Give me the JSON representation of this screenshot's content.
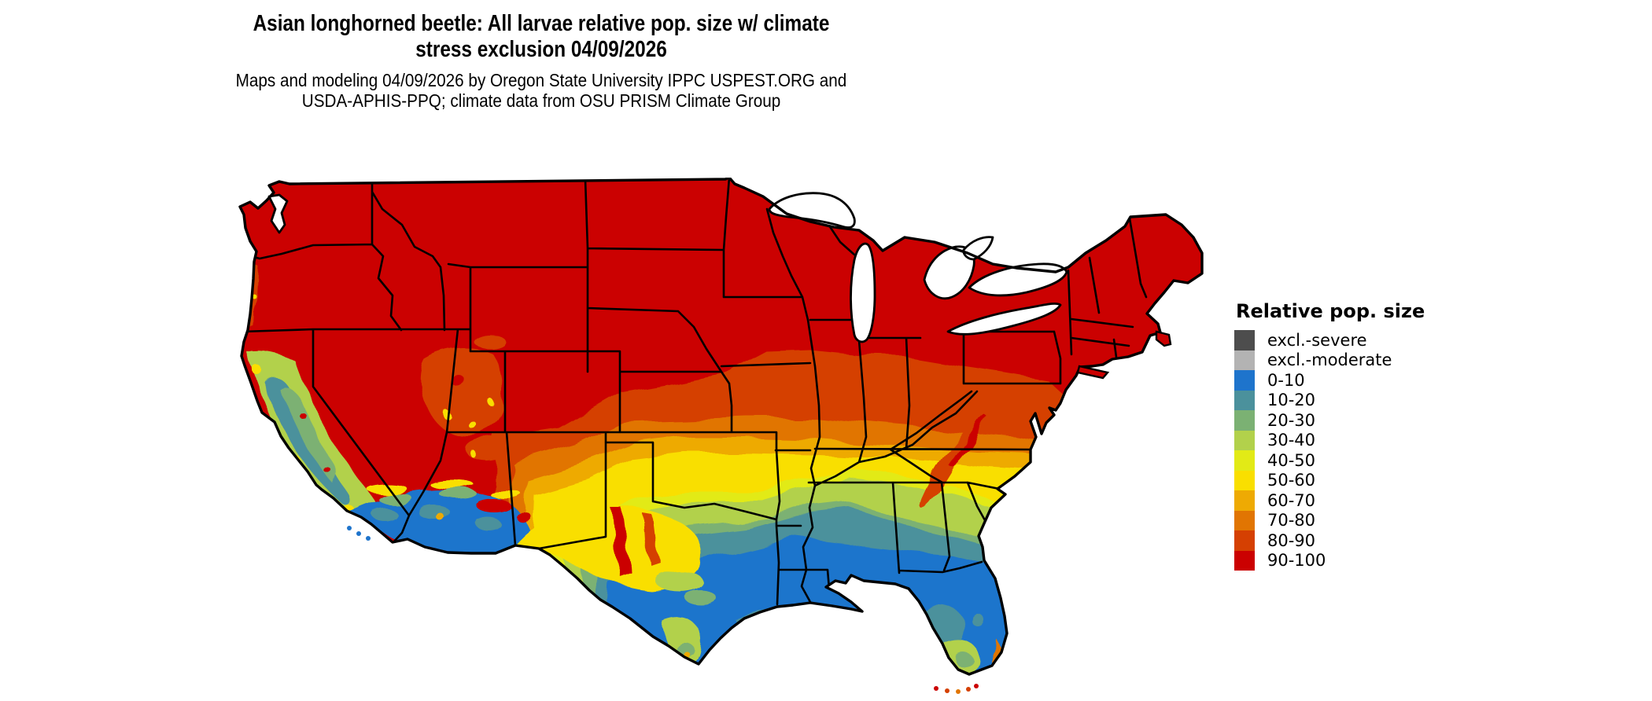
{
  "title": {
    "line1": "Asian longhorned beetle: All larvae relative pop. size w/ climate",
    "line2": "stress exclusion 04/09/2026"
  },
  "subtitle": {
    "line1": "Maps and modeling 04/09/2026 by Oregon State University IPPC USPEST.ORG and",
    "line2": "USDA-APHIS-PPQ; climate data from OSU PRISM Climate Group"
  },
  "legend": {
    "title": "Relative pop. size",
    "entries": [
      {
        "label": "excl.-severe",
        "color": "#4d4d4d"
      },
      {
        "label": "excl.-moderate",
        "color": "#b3b3b3"
      },
      {
        "label": "0-10",
        "color": "#1e74cc"
      },
      {
        "label": "10-20",
        "color": "#4b919c"
      },
      {
        "label": "20-30",
        "color": "#7bb173"
      },
      {
        "label": "30-40",
        "color": "#b2d14b"
      },
      {
        "label": "40-50",
        "color": "#e2ea16"
      },
      {
        "label": "50-60",
        "color": "#f9df00"
      },
      {
        "label": "60-70",
        "color": "#eeaa03"
      },
      {
        "label": "70-80",
        "color": "#e17502"
      },
      {
        "label": "80-90",
        "color": "#d54002"
      },
      {
        "label": "90-100",
        "color": "#cb0101"
      }
    ]
  },
  "map": {
    "region": "Continental United States",
    "palette": {
      "excl_severe": "#4d4d4d",
      "excl_moderate": "#b3b3b3",
      "p0_10": "#1e74cc",
      "p10_20": "#4b919c",
      "p20_30": "#7bb173",
      "p30_40": "#b2d14b",
      "p40_50": "#e2ea16",
      "p50_60": "#f9df00",
      "p60_70": "#eeaa03",
      "p70_80": "#e17502",
      "p80_90": "#d54002",
      "p90_100": "#cb0101"
    }
  }
}
